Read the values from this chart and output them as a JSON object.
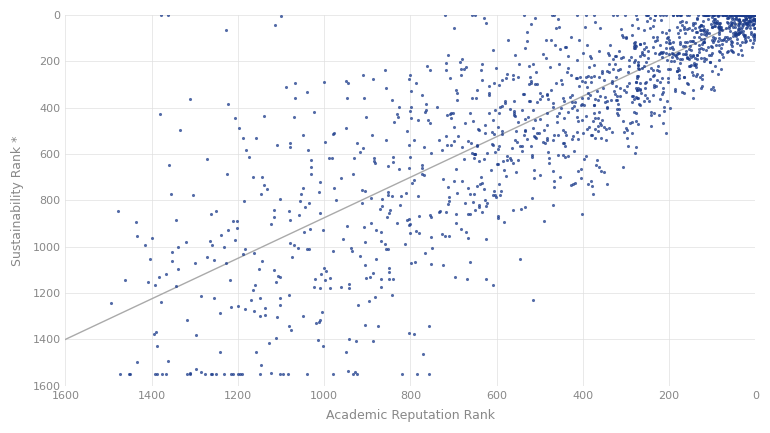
{
  "title": "",
  "xlabel": "Academic Reputation Rank",
  "ylabel": "Sustainability Rank *",
  "x_min": 0,
  "x_max": 1600,
  "y_min": 0,
  "y_max": 1600,
  "x_ticks": [
    0,
    200,
    400,
    600,
    800,
    1000,
    1200,
    1400,
    1600
  ],
  "y_ticks": [
    0,
    200,
    400,
    600,
    800,
    1000,
    1200,
    1400,
    1600
  ],
  "dot_color": "#1a3a8a",
  "dot_size": 5,
  "dot_alpha": 0.75,
  "line_color": "#aaaaaa",
  "line_width": 1.0,
  "background_color": "#ffffff",
  "grid_color": "#e0e0e0",
  "axis_label_color": "#888888",
  "tick_label_color": "#888888",
  "tick_label_fontsize": 8,
  "axis_label_fontsize": 9,
  "n_points": 1400,
  "seed": 7
}
